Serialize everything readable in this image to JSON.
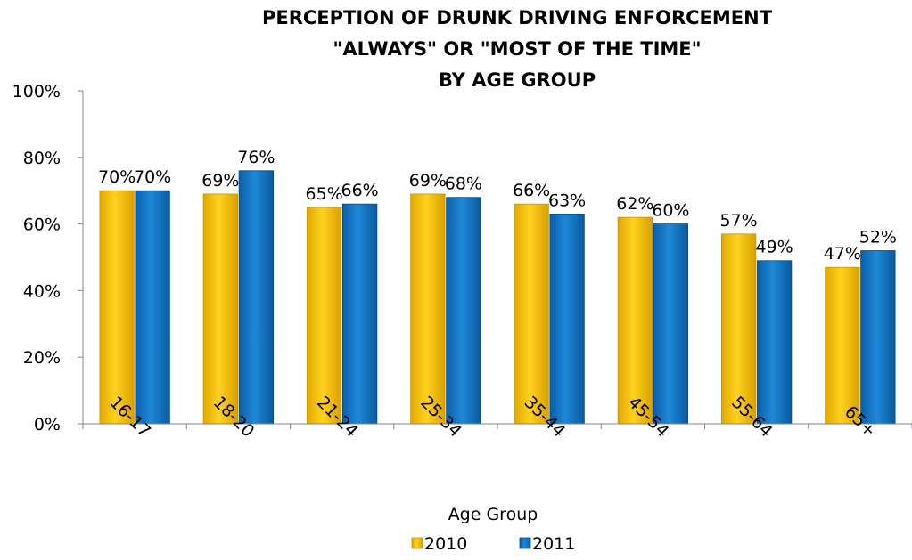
{
  "chart_data": {
    "type": "bar",
    "title_lines": [
      "PERCEPTION OF DRUNK DRIVING ENFORCEMENT",
      "\"ALWAYS\" OR \"MOST OF THE TIME\"",
      "BY AGE GROUP"
    ],
    "xlabel": "Age Group",
    "ylabel": "",
    "categories": [
      "16-17",
      "18-20",
      "21-24",
      "25-34",
      "35-44",
      "45-54",
      "55-64",
      "65+"
    ],
    "series": [
      {
        "name": "2010",
        "values": [
          70,
          69,
          65,
          69,
          66,
          62,
          57,
          47
        ],
        "labels": [
          "70%",
          "69%",
          "65%",
          "69%",
          "66%",
          "62%",
          "57%",
          "47%"
        ]
      },
      {
        "name": "2011",
        "values": [
          70,
          76,
          66,
          68,
          63,
          60,
          49,
          52
        ],
        "labels": [
          "70%",
          "76%",
          "66%",
          "68%",
          "63%",
          "60%",
          "49%",
          "52%"
        ]
      }
    ],
    "ylim": [
      0,
      100
    ],
    "yticks": [
      0,
      20,
      40,
      60,
      80,
      100
    ],
    "ytick_labels": [
      "0%",
      "20%",
      "40%",
      "60%",
      "80%",
      "100%"
    ],
    "grid": false,
    "legend": "bottom"
  },
  "colors": {
    "series_2010": "#FFC000",
    "series_2010_dark": "#C99600",
    "series_2011": "#0070C0",
    "series_2011_dark": "#004E8A"
  }
}
